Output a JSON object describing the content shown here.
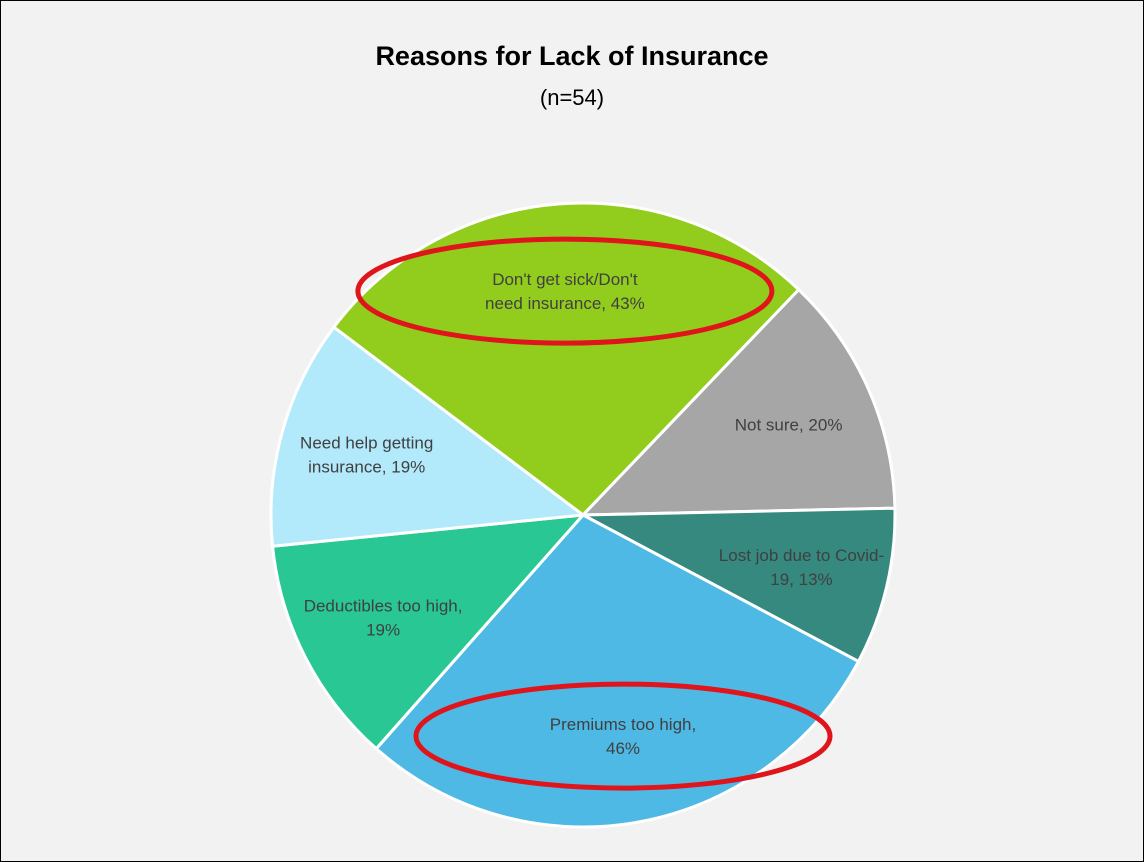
{
  "chart_data": {
    "type": "pie",
    "title": "Reasons for Lack of Insurance",
    "subtitle": "(n=54)",
    "slices": [
      {
        "label": "Don't get sick/Don't need insurance",
        "value": 43,
        "label_text": [
          "Don't get sick/Don't",
          "need insurance, 43%"
        ],
        "color": "#92cd1e",
        "highlighted": true
      },
      {
        "label": "Not sure",
        "value": 20,
        "label_text": [
          "Not sure, 20%"
        ],
        "color": "#a6a6a6",
        "highlighted": false
      },
      {
        "label": "Lost job due to Covid-19",
        "value": 13,
        "label_text": [
          "Lost job due to Covid-",
          "19, 13%"
        ],
        "color": "#35897f",
        "highlighted": false
      },
      {
        "label": "Premiums too high",
        "value": 46,
        "label_text": [
          "Premiums too high,",
          "46%"
        ],
        "color": "#4eb9e5",
        "highlighted": true
      },
      {
        "label": "Deductibles too high",
        "value": 19,
        "label_text": [
          "Deductibles too high,",
          "19%"
        ],
        "color": "#29c794",
        "highlighted": false
      },
      {
        "label": "Need help getting insurance",
        "value": 19,
        "label_text": [
          "Need help getting",
          "insurance, 19%"
        ],
        "color": "#b2e9fb",
        "highlighted": false
      }
    ],
    "highlight_color": "#e0141b",
    "legend": "none",
    "data_labels": "inside"
  }
}
